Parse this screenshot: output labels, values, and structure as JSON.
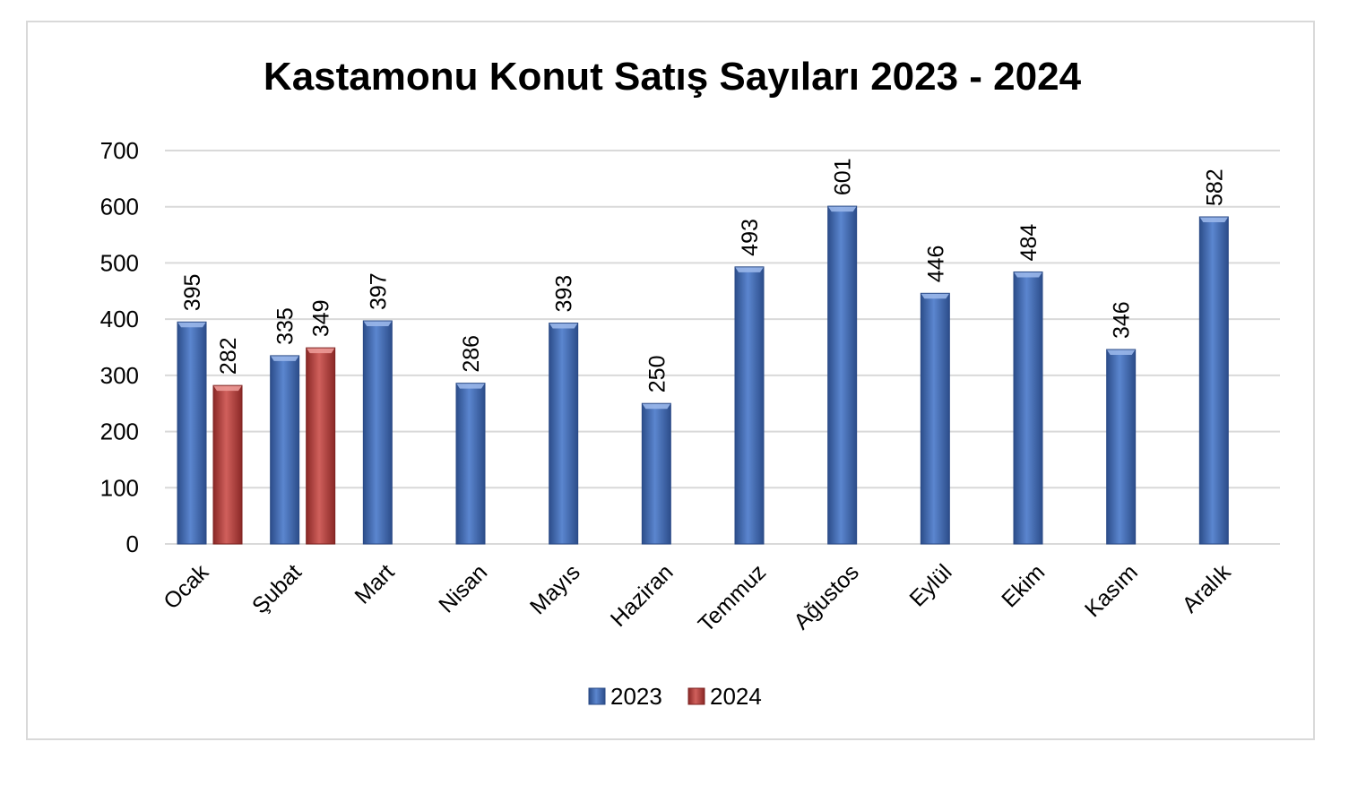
{
  "chart_data": {
    "type": "bar",
    "title": "Kastamonu Konut Satış Sayıları 2023 - 2024",
    "xlabel": "",
    "ylabel": "",
    "ylim": [
      0,
      700
    ],
    "yticks": [
      0,
      100,
      200,
      300,
      400,
      500,
      600,
      700
    ],
    "grid": true,
    "legend_position": "bottom",
    "categories": [
      "Ocak",
      "Şubat",
      "Mart",
      "Nisan",
      "Mayıs",
      "Haziran",
      "Temmuz",
      "Ağustos",
      "Eylül",
      "Ekim",
      "Kasım",
      "Aralık"
    ],
    "series": [
      {
        "name": "2023",
        "color": "#4472c4",
        "values": [
          395,
          335,
          397,
          286,
          393,
          250,
          493,
          601,
          446,
          484,
          346,
          582
        ]
      },
      {
        "name": "2024",
        "color": "#c0504d",
        "values": [
          282,
          349,
          null,
          null,
          null,
          null,
          null,
          null,
          null,
          null,
          null,
          null
        ]
      }
    ]
  }
}
